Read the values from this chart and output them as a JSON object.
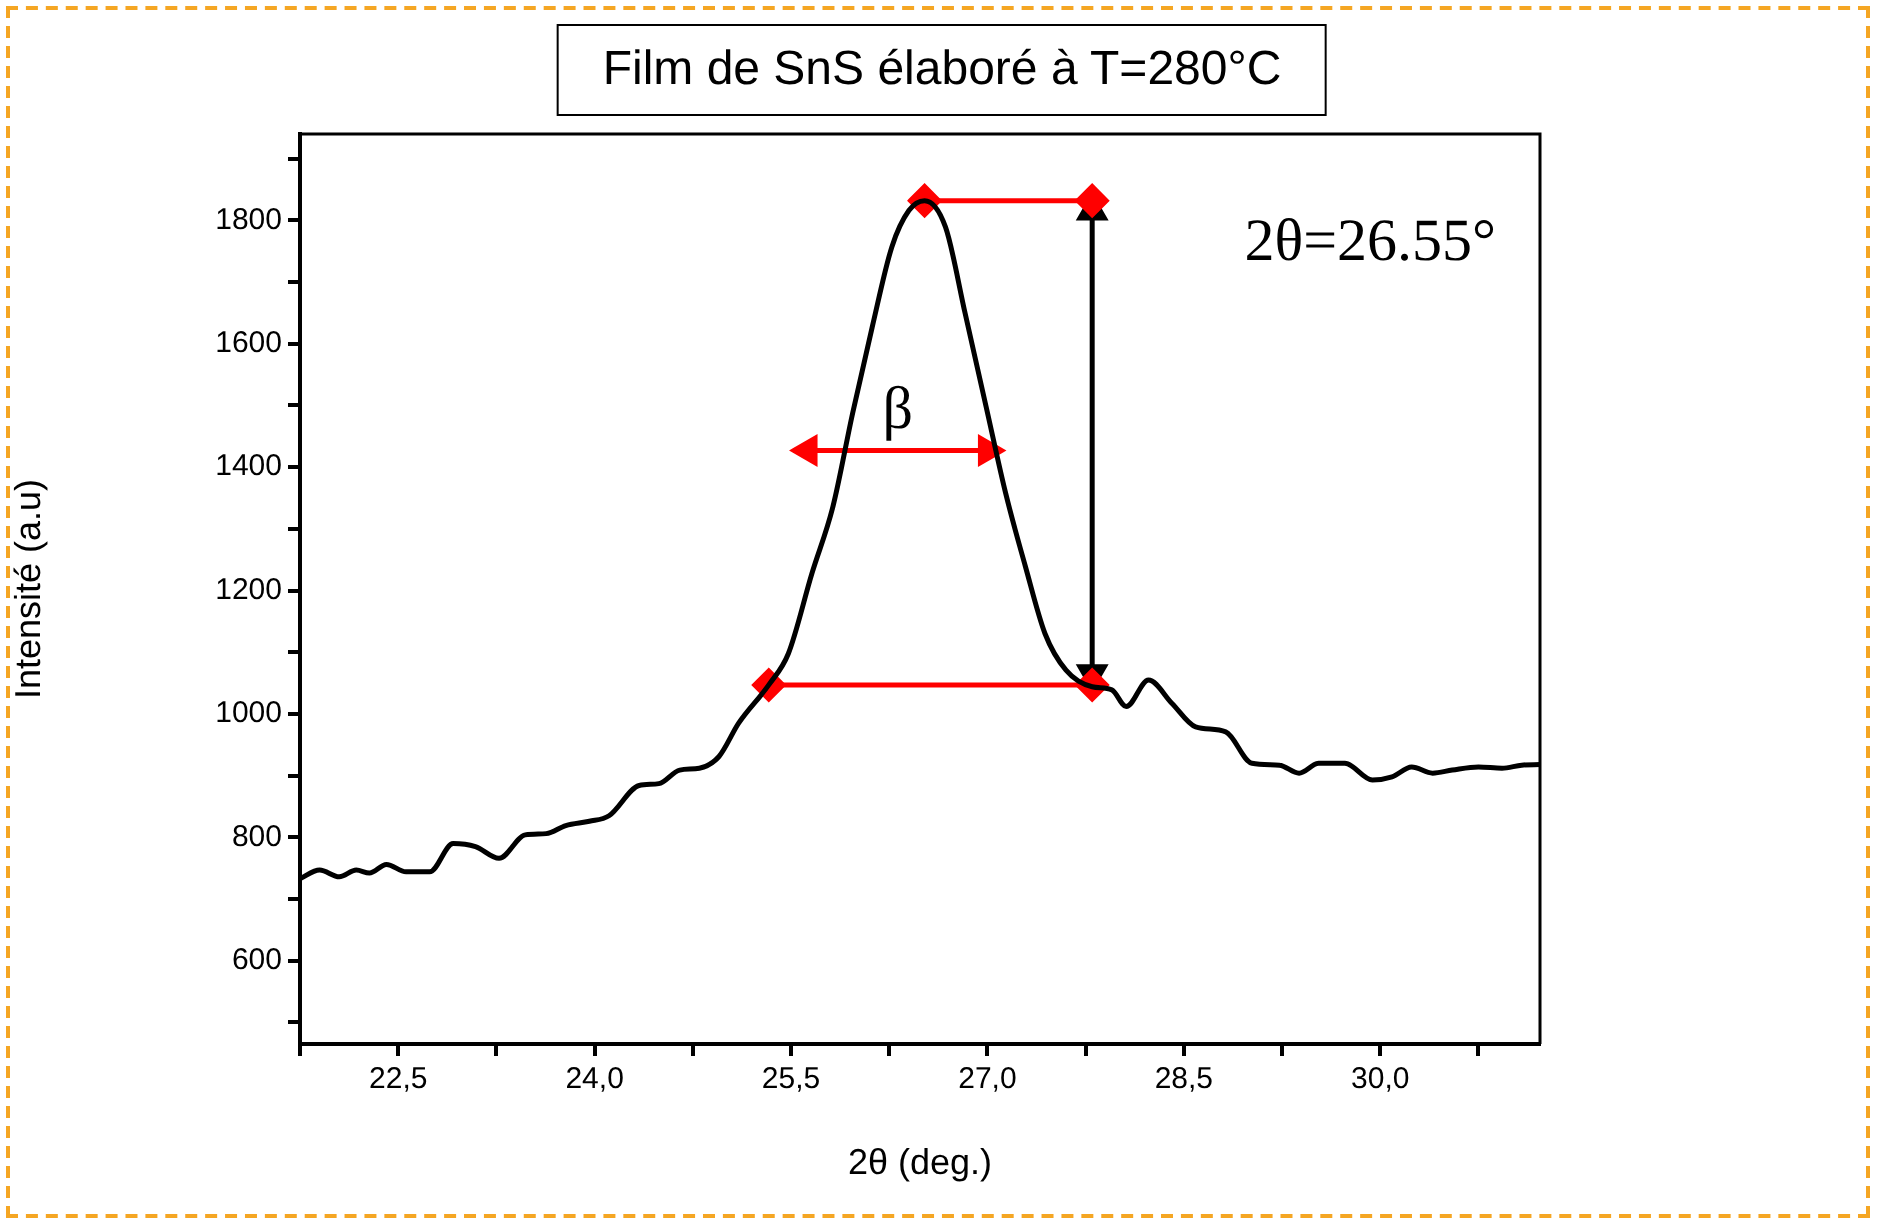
{
  "chart_data": {
    "type": "line",
    "title": "Film de SnS élaboré à T=280°C",
    "xlabel": "2θ (deg.)",
    "ylabel": "Intensité (a.u)",
    "xlim": [
      21.75,
      31.22
    ],
    "xticks": [
      {
        "value": 21.75,
        "label": null
      },
      {
        "value": 22.5,
        "label": "22,5"
      },
      {
        "value": 23.25,
        "label": null
      },
      {
        "value": 24,
        "label": "24,0"
      },
      {
        "value": 24.75,
        "label": null
      },
      {
        "value": 25.5,
        "label": "25,5"
      },
      {
        "value": 26.25,
        "label": null
      },
      {
        "value": 27,
        "label": "27,0"
      },
      {
        "value": 27.75,
        "label": null
      },
      {
        "value": 28.5,
        "label": "28,5"
      },
      {
        "value": 29.25,
        "label": null
      },
      {
        "value": 30,
        "label": "30,0"
      },
      {
        "value": 30.75,
        "label": null
      }
    ],
    "ylim": [
      465,
      1940
    ],
    "yticks": [
      {
        "value": 500,
        "label": null
      },
      600,
      {
        "value": 700,
        "label": null
      },
      800,
      {
        "value": 900,
        "label": null
      },
      1000,
      {
        "value": 1100,
        "label": null
      },
      1200,
      {
        "value": 1300,
        "label": null
      },
      1400,
      {
        "value": 1500,
        "label": null
      },
      1600,
      {
        "value": 1700,
        "label": null
      },
      1800,
      {
        "value": 1900,
        "label": null
      }
    ],
    "series": [
      {
        "color": "#000000",
        "marker": "none",
        "x": [
          21.75,
          21.9,
          22.05,
          22.18,
          22.28,
          22.41,
          22.56,
          22.74,
          22.92,
          23.09,
          23.27,
          23.47,
          23.63,
          23.78,
          23.96,
          24.11,
          24.34,
          24.49,
          24.65,
          24.8,
          24.95,
          25.1,
          25.33,
          25.48,
          25.66,
          25.82,
          25.97,
          26.12,
          26.27,
          26.4,
          26.52,
          26.68,
          26.83,
          26.99,
          27.14,
          27.29,
          27.44,
          27.6,
          27.8,
          27.95,
          28.06,
          28.23,
          28.41,
          28.59,
          28.82,
          29.02,
          29.23,
          29.38,
          29.53,
          29.73,
          29.94,
          30.09,
          30.24,
          30.4,
          30.55,
          30.75,
          30.93,
          31.08,
          31.22
        ],
        "values": [
          733,
          747,
          736,
          747,
          742,
          756,
          744,
          744,
          790,
          785,
          766,
          804,
          806,
          819,
          826,
          835,
          884,
          887,
          909,
          912,
          931,
          985,
          1047,
          1098,
          1228,
          1336,
          1487,
          1627,
          1757,
          1816,
          1832,
          1789,
          1649,
          1498,
          1357,
          1239,
          1130,
          1071,
          1044,
          1039,
          1012,
          1055,
          1017,
          979,
          971,
          920,
          917,
          904,
          920,
          920,
          893,
          898,
          914,
          904,
          909,
          914,
          912,
          917,
          918
        ]
      },
      {
        "color": "#ff0000",
        "marker": "diamond",
        "x": [
          26.52,
          27.8
        ],
        "values": [
          1832,
          1832
        ]
      },
      {
        "color": "#ff0000",
        "marker": "diamond",
        "x": [
          25.33,
          27.8
        ],
        "values": [
          1047,
          1047
        ]
      },
      {
        "name": "β",
        "color": "#ff0000",
        "marker": "triangle",
        "x": [
          25.63,
          27.0
        ],
        "values": [
          1427,
          1427
        ]
      },
      {
        "color": "#000000",
        "marker": "triangle",
        "x": [
          27.8,
          27.8
        ],
        "values": [
          1815,
          1065
        ]
      }
    ],
    "annotations": [
      "2θ=26.55°"
    ]
  }
}
